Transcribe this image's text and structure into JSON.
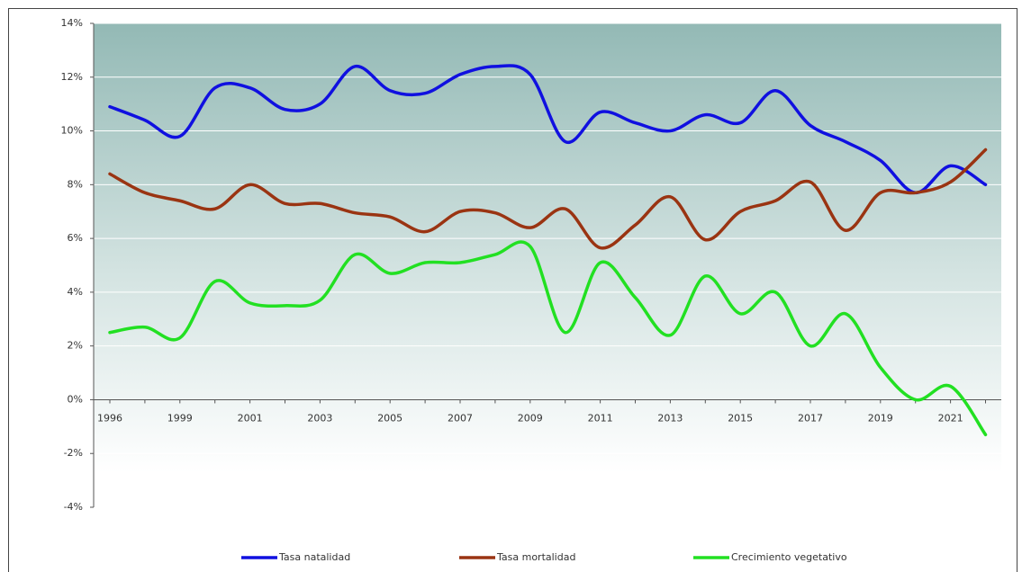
{
  "chart_data": {
    "type": "line",
    "categories": [
      "1996",
      null,
      "1999",
      null,
      "2001",
      null,
      "2003",
      null,
      "2005",
      null,
      "2007",
      null,
      "2009",
      null,
      "2011",
      null,
      "2013",
      null,
      "2015",
      null,
      "2017",
      null,
      "2019",
      null,
      "2021",
      null
    ],
    "series": [
      {
        "name": "Tasa natalidad",
        "color": "#1010e0",
        "values": [
          10.9,
          10.4,
          9.8,
          11.6,
          11.6,
          10.8,
          11.0,
          12.4,
          11.5,
          11.4,
          12.1,
          12.4,
          12.1,
          9.6,
          10.7,
          10.3,
          10.0,
          10.6,
          10.3,
          11.5,
          10.2,
          9.6,
          8.9,
          7.7,
          8.7,
          8.0
        ]
      },
      {
        "name": "Tasa mortalidad",
        "color": "#9a3412",
        "values": [
          8.4,
          7.7,
          7.4,
          7.1,
          8.0,
          7.3,
          7.3,
          6.95,
          6.8,
          6.25,
          7.0,
          6.95,
          6.4,
          7.1,
          5.65,
          6.5,
          7.55,
          5.95,
          7.0,
          7.4,
          8.1,
          6.3,
          7.7,
          7.7,
          8.1,
          9.3
        ]
      },
      {
        "name": "Crecimiento vegetativo",
        "color": "#22e022",
        "values": [
          2.5,
          2.7,
          2.3,
          4.4,
          3.6,
          3.5,
          3.7,
          5.4,
          4.7,
          5.1,
          5.1,
          5.4,
          5.7,
          2.5,
          5.1,
          3.8,
          2.4,
          4.6,
          3.2,
          4.0,
          2.0,
          3.2,
          1.2,
          0.0,
          0.5,
          -1.3
        ]
      }
    ],
    "ylim": [
      -4,
      14
    ],
    "yticks": [
      {
        "value": -4,
        "label": "-4%"
      },
      {
        "value": -2,
        "label": "-2%"
      },
      {
        "value": 0,
        "label": "0%"
      },
      {
        "value": 2,
        "label": "2%"
      },
      {
        "value": 4,
        "label": "4%"
      },
      {
        "value": 6,
        "label": "6%"
      },
      {
        "value": 8,
        "label": "8%"
      },
      {
        "value": 10,
        "label": "10%"
      },
      {
        "value": 12,
        "label": "12%"
      },
      {
        "value": 14,
        "label": "14%"
      }
    ],
    "grid": true,
    "legend": "bottom"
  }
}
